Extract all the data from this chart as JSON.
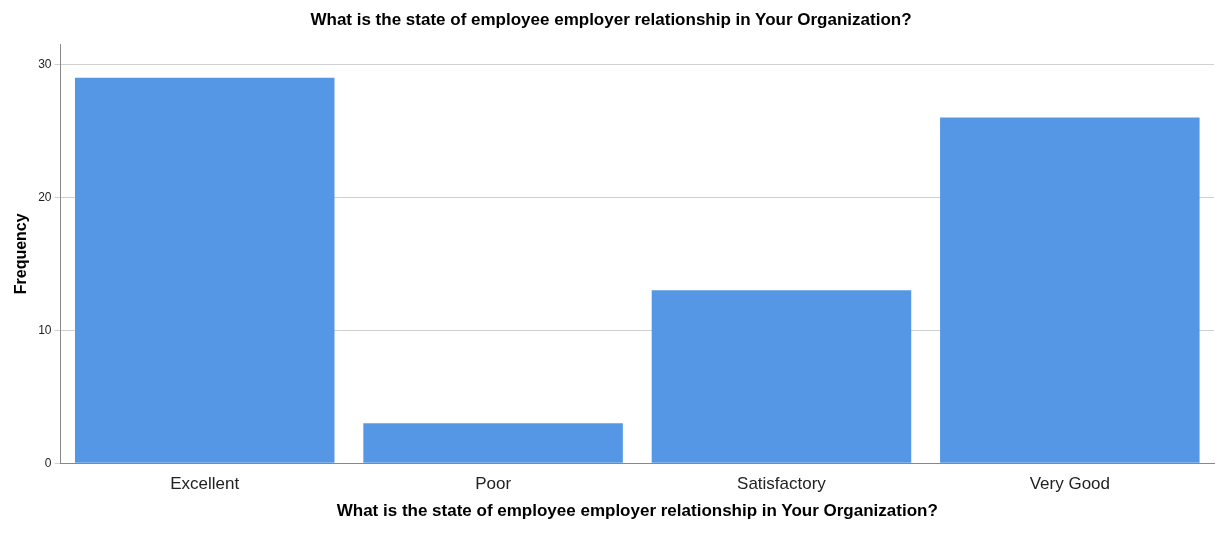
{
  "chart_data": {
    "type": "bar",
    "title": "What is the state of employee employer relationship in Your Organization?",
    "xlabel": "What is the state of employee employer relationship in Your Organization?",
    "ylabel": "Frequency",
    "categories": [
      "Excellent",
      "Poor",
      "Satisfactory",
      "Very Good"
    ],
    "values": [
      29,
      3,
      13,
      26
    ],
    "color": "#5597e5",
    "ylim": [
      0,
      31.5
    ],
    "yticks": [
      0,
      10,
      20,
      30
    ],
    "grid": "y"
  }
}
